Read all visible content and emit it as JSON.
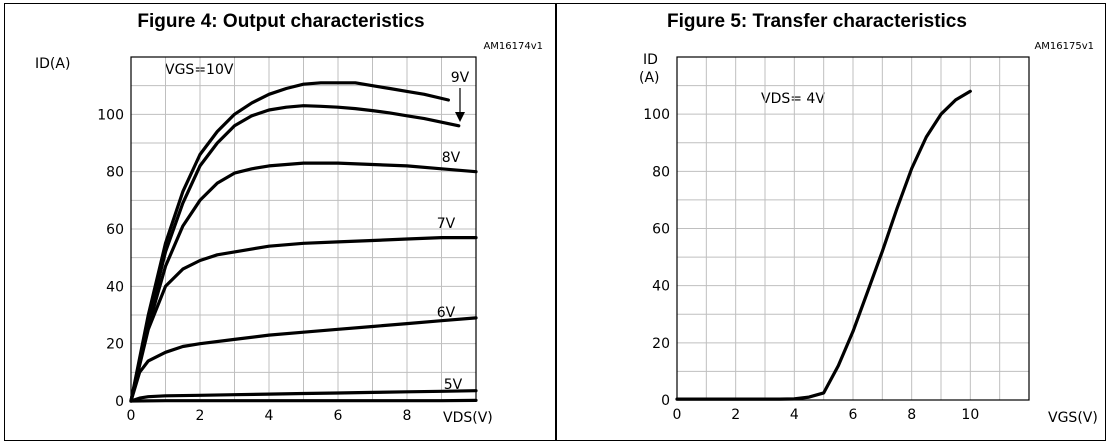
{
  "chart_data": [
    {
      "type": "line",
      "title": "Figure 4: Output characteristics",
      "code": "AM16174v1",
      "ylabel": "ID(A)",
      "xlabel": "VDS(V)",
      "annotation": "VGS=10V",
      "xlim": [
        0,
        10
      ],
      "ylim": [
        0,
        120
      ],
      "xticks": [
        0,
        2,
        4,
        6,
        8
      ],
      "yticks": [
        0,
        20,
        40,
        60,
        80,
        100
      ],
      "grid": true,
      "series": [
        {
          "name": "10V",
          "x": [
            0,
            0.5,
            1,
            1.5,
            2,
            2.5,
            3,
            3.5,
            4,
            4.5,
            5,
            5.5,
            6,
            6.5,
            7,
            7.5,
            8,
            8.5,
            9.2
          ],
          "y": [
            0,
            30,
            55,
            73,
            86,
            94,
            100,
            104,
            107,
            109,
            110.5,
            111,
            111,
            111,
            110,
            109,
            108,
            107,
            105
          ]
        },
        {
          "name": "9V",
          "x": [
            0,
            0.5,
            1,
            1.5,
            2,
            2.5,
            3,
            3.5,
            4,
            4.5,
            5,
            5.5,
            6,
            6.5,
            7,
            7.5,
            8,
            8.5,
            9.5
          ],
          "y": [
            0,
            28,
            52,
            69,
            82,
            90,
            96,
            99.5,
            101.5,
            102.5,
            103,
            102.8,
            102.5,
            102,
            101.3,
            100.5,
            99.5,
            98.5,
            96
          ]
        },
        {
          "name": "8V",
          "x": [
            0,
            0.5,
            1,
            1.5,
            2,
            2.5,
            3,
            3.5,
            4,
            5,
            6,
            7,
            8,
            9,
            10
          ],
          "y": [
            0,
            26,
            47,
            61,
            70,
            76,
            79.5,
            81,
            82,
            83,
            83,
            82.5,
            82,
            81,
            80
          ]
        },
        {
          "name": "7V",
          "x": [
            0,
            0.5,
            1,
            1.5,
            2,
            2.5,
            3,
            4,
            5,
            6,
            7,
            8,
            9,
            10
          ],
          "y": [
            0,
            25,
            40,
            46,
            49,
            51,
            52,
            54,
            55,
            55.5,
            56,
            56.5,
            57,
            57
          ]
        },
        {
          "name": "6V",
          "x": [
            0,
            0.25,
            0.5,
            1,
            1.5,
            2,
            3,
            4,
            5,
            6,
            7,
            8,
            9,
            10
          ],
          "y": [
            0,
            10,
            14,
            17,
            19,
            20,
            21.5,
            23,
            24,
            25,
            26,
            27,
            28,
            29
          ]
        },
        {
          "name": "5V",
          "x": [
            0,
            0.25,
            0.5,
            1,
            2,
            3,
            4,
            5,
            6,
            7,
            8,
            9,
            10
          ],
          "y": [
            0,
            1,
            1.5,
            1.8,
            2,
            2.2,
            2.4,
            2.6,
            2.8,
            3,
            3.2,
            3.4,
            3.6
          ]
        },
        {
          "name": "",
          "x": [
            0,
            1,
            2,
            3,
            4,
            5,
            6,
            7,
            8,
            9,
            10
          ],
          "y": [
            0,
            0.1,
            0.1,
            0.1,
            0.1,
            0.1,
            0.1,
            0.1,
            0.1,
            0.1,
            0.2
          ]
        }
      ]
    },
    {
      "type": "line",
      "title": "Figure 5: Transfer characteristics",
      "code": "AM16175v1",
      "ylabel_line1": "ID",
      "ylabel_line2": "(A)",
      "xlabel": "VGS(V)",
      "annotation": "VDS= 4V",
      "xlim": [
        0,
        12
      ],
      "ylim": [
        0,
        120
      ],
      "xticks": [
        0,
        2,
        4,
        6,
        8,
        10
      ],
      "yticks": [
        0,
        20,
        40,
        60,
        80,
        100
      ],
      "grid": true,
      "series": [
        {
          "name": "",
          "x": [
            0,
            1,
            2,
            3,
            3.5,
            4,
            4.5,
            5,
            5.5,
            6,
            6.5,
            7,
            7.5,
            8,
            8.5,
            9,
            9.5,
            10
          ],
          "y": [
            0.3,
            0.3,
            0.3,
            0.3,
            0.3,
            0.4,
            1,
            2.5,
            12,
            24,
            38,
            52,
            67,
            81,
            92,
            100,
            105,
            108
          ]
        }
      ]
    }
  ]
}
